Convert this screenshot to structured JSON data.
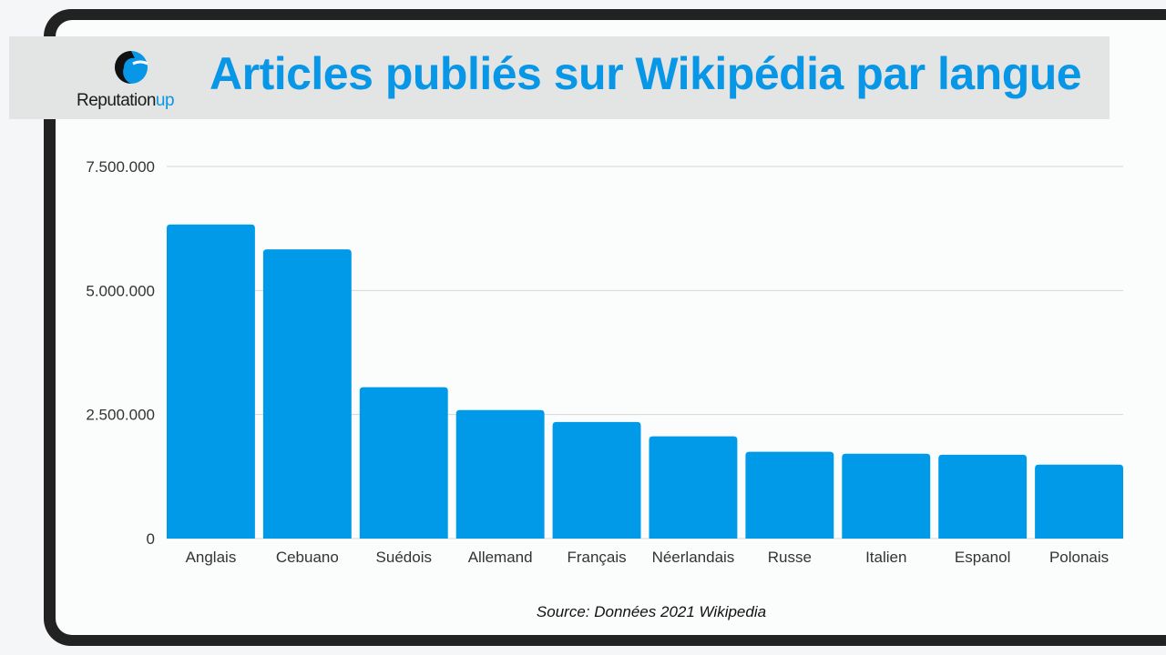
{
  "logo": {
    "brand": "Reputation",
    "brand_suffix": "up"
  },
  "colors": {
    "bar": "#009AE8",
    "title": "#0896E6"
  },
  "chart_data": {
    "type": "bar",
    "title": "Articles publiés sur Wikipédia par langue",
    "categories": [
      "Anglais",
      "Cebuano",
      "Suédois",
      "Allemand",
      "Français",
      "Néerlandais",
      "Russe",
      "Italien",
      "Espanol",
      "Polonais"
    ],
    "values": [
      6330000,
      5830000,
      3050000,
      2590000,
      2350000,
      2060000,
      1750000,
      1710000,
      1690000,
      1490000
    ],
    "xlabel": "",
    "ylabel": "",
    "ylim": [
      0,
      7500000
    ],
    "yticks": [
      0,
      2500000,
      5000000,
      7500000
    ],
    "ytick_labels": [
      "0",
      "2.500.000",
      "5.000.000",
      "7.500.000"
    ],
    "grid": true,
    "source": "Source: Données 2021 Wikipedia"
  }
}
